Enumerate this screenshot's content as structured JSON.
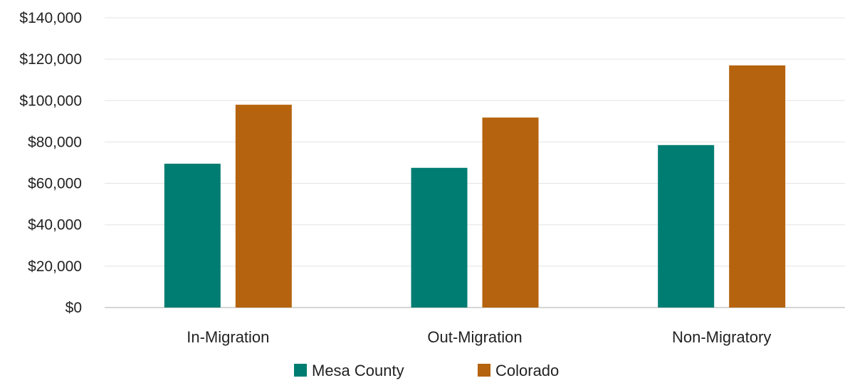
{
  "chart_data": {
    "type": "bar",
    "title": "",
    "xlabel": "",
    "ylabel": "",
    "categories": [
      "In-Migration",
      "Out-Migration",
      "Non-Migratory"
    ],
    "series": [
      {
        "name": "Mesa County",
        "color": "#007d72",
        "values": [
          69500,
          67500,
          78500
        ]
      },
      {
        "name": "Colorado",
        "color": "#b5630e",
        "values": [
          98000,
          91800,
          117000
        ]
      }
    ],
    "ylim": [
      0,
      140000
    ],
    "yticks": [
      0,
      20000,
      40000,
      60000,
      80000,
      100000,
      120000,
      140000
    ],
    "ytick_labels": [
      "$0",
      "$20,000",
      "$40,000",
      "$60,000",
      "$80,000",
      "$100,000",
      "$120,000",
      "$140,000"
    ],
    "grid": true,
    "legend_position": "bottom"
  }
}
